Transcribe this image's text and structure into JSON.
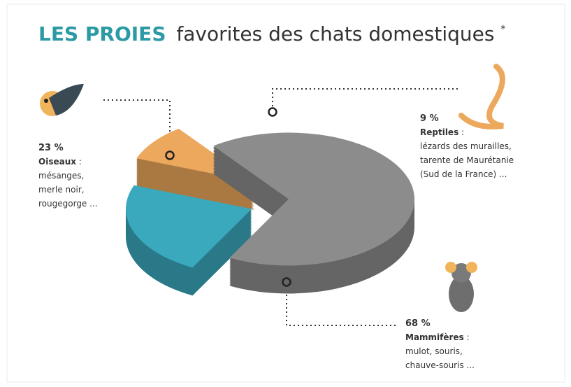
{
  "chart_data": {
    "type": "pie",
    "title_emphasis": "LES PROIES",
    "title": "favorites des chats domestiques",
    "title_note": "*",
    "categories": [
      "Oiseaux",
      "Reptiles",
      "Mammifères"
    ],
    "values": [
      23,
      9,
      68
    ],
    "value_labels": [
      "23 %",
      "9 %",
      "68 %"
    ],
    "colors": [
      "#3aa8bd",
      "#eca85c",
      "#8c8c8c"
    ],
    "label_separator": " :",
    "descriptions": [
      [
        "mésanges,",
        "merle noir,",
        "rougegorge ..."
      ],
      [
        "lézards des murailles,",
        "tarente de Maurétanie",
        "(Sud de la France) ..."
      ],
      [
        "mulot, souris,",
        "chauve-souris ..."
      ]
    ]
  }
}
